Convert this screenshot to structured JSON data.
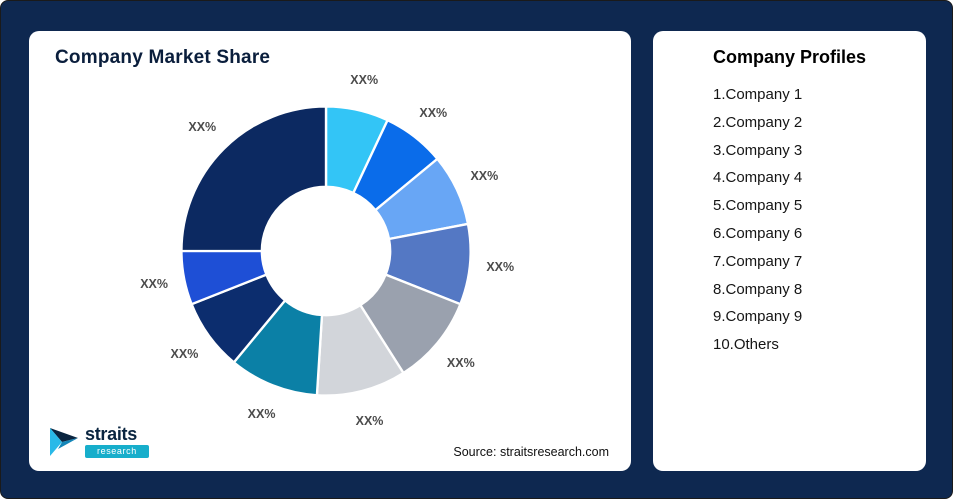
{
  "page": {
    "background_color": "#0E2850",
    "panel_color": "#FFFFFF"
  },
  "left_panel": {
    "title": "Company Market Share",
    "source_note": "Source: straitsresearch.com",
    "logo": {
      "name": "straits",
      "badge": "research"
    }
  },
  "right_panel": {
    "title": "Company Profiles",
    "items": [
      "1.Company 1",
      "2.Company 2",
      "3.Company 3",
      "4.Company 4",
      "5.Company 5",
      "6.Company 6",
      "7.Company 7",
      "8.Company 8",
      "9.Company 9",
      "10.Others"
    ]
  },
  "chart_data": {
    "type": "pie",
    "subtype": "donut",
    "title": "Company Market Share",
    "labels": [
      "Company 1",
      "Company 2",
      "Company 3",
      "Company 4",
      "Company 5",
      "Company 6",
      "Company 7",
      "Company 8",
      "Company 9",
      "Others"
    ],
    "display_labels": [
      "XX%",
      "XX%",
      "XX%",
      "XX%",
      "XX%",
      "XX%",
      "XX%",
      "XX%",
      "XX%",
      "XX%"
    ],
    "values": [
      7,
      7,
      8,
      9,
      10,
      10,
      10,
      8,
      6,
      25
    ],
    "colors": [
      "#33C5F6",
      "#0A6CEA",
      "#68A6F5",
      "#5478C4",
      "#9AA1AE",
      "#D2D5DA",
      "#0B80A6",
      "#0C2D6E",
      "#1E4FD6",
      "#0C2961"
    ],
    "start_angle": 0,
    "direction": "clockwise",
    "inner_radius_ratio": 0.44,
    "slice_gap_color": "#FFFFFF",
    "legend_position": "none"
  }
}
